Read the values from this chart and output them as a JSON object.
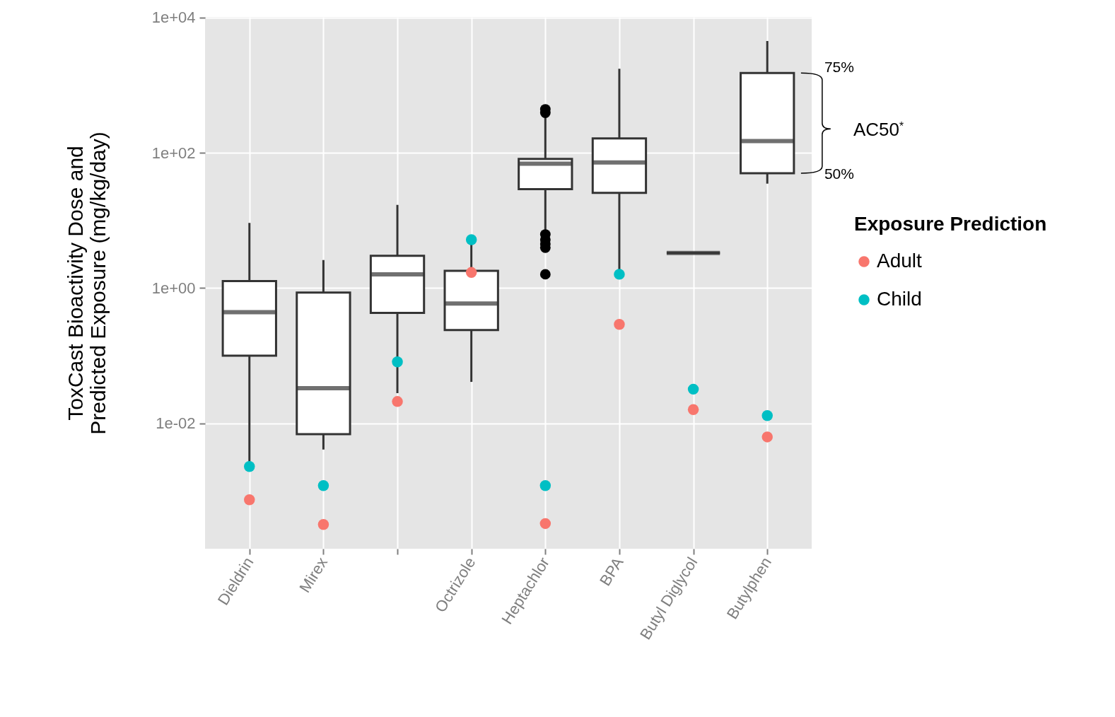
{
  "chart_data": {
    "type": "box",
    "ylabel": "ToxCast Bioactivity Dose and Predicted Exposure (mg/kg/day)",
    "legend_title": "Exposure Prediction",
    "categories": [
      "Dieldrin",
      "Mirex",
      null,
      "Octrizole",
      "Heptachlor",
      "BPA",
      "Butyl Diglycol",
      "Butylphen"
    ],
    "log": true,
    "ylim": [
      0.00014,
      10200
    ],
    "yticks": [
      {
        "value": 0.01,
        "label": "1e-02"
      },
      {
        "value": 1,
        "label": "1e+00"
      },
      {
        "value": 100,
        "label": "1e+02"
      },
      {
        "value": 10000,
        "label": "1e+04"
      }
    ],
    "grid": true,
    "legend": "right",
    "series": [
      {
        "type": "box",
        "color": "#333333",
        "boxes": [
          {
            "low": 0.0024,
            "q1": 0.1,
            "median": 0.44,
            "q3": 1.27,
            "high": 9.2
          },
          {
            "low": 0.0041,
            "q1": 0.0069,
            "median": 0.033,
            "q3": 0.86,
            "high": 2.6
          },
          {
            "low": 0.028,
            "q1": 0.43,
            "median": 1.6,
            "q3": 3.0,
            "high": 17
          },
          {
            "low": 0.041,
            "q1": 0.24,
            "median": 0.59,
            "q3": 1.8,
            "high": 4.8
          },
          {
            "low": 6.4,
            "q1": 29,
            "median": 69,
            "q3": 81,
            "high": 370,
            "outliers": [
              440,
              390,
              6.2,
              5.2,
              4.5,
              3.96,
              1.6
            ]
          },
          {
            "low": 1.8,
            "q1": 25.6,
            "median": 72,
            "q3": 163,
            "high": 1750
          },
          {
            "low": 3.3,
            "q1": 3.3,
            "median": 3.3,
            "q3": 3.3,
            "high": 3.3
          },
          {
            "low": 35,
            "q1": 50,
            "median": 149,
            "q3": 1510,
            "high": 4500
          }
        ]
      },
      {
        "type": "scatter",
        "name": "Adult",
        "color": "#f8766d",
        "values": [
          0.00074,
          0.00032,
          0.021,
          1.7,
          0.00033,
          0.29,
          0.016,
          0.0063
        ]
      },
      {
        "type": "scatter",
        "name": "Child",
        "color": "#00bfc4",
        "values": [
          0.0023,
          0.0012,
          0.081,
          5.2,
          0.0012,
          1.6,
          0.032,
          0.013
        ]
      }
    ],
    "annotations": [
      "75%",
      "50%",
      "AC50$^{*}$"
    ]
  }
}
